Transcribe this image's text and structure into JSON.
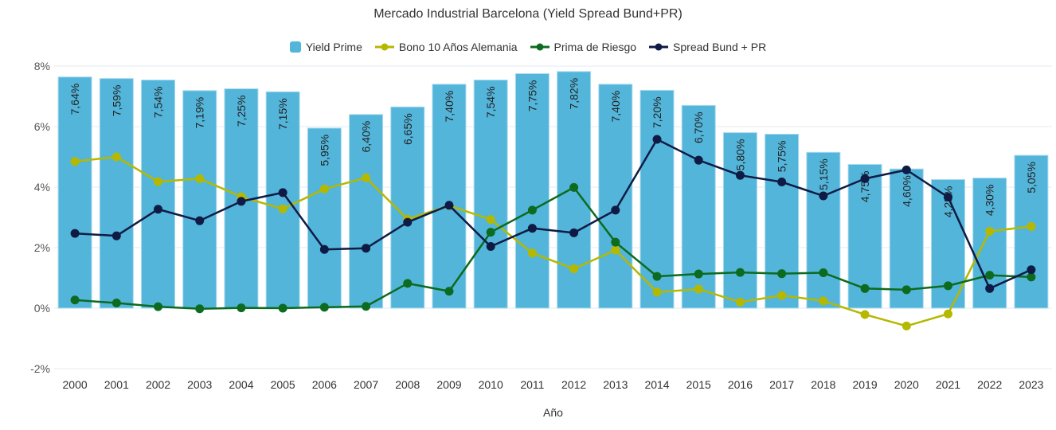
{
  "chart_data": {
    "type": "bar+line",
    "title": "Mercado Industrial Barcelona (Yield Spread Bund+PR)",
    "xlabel": "Año",
    "ylabel": "",
    "ylim": [
      -2,
      8
    ],
    "yticks": [
      -2,
      0,
      2,
      4,
      6,
      8
    ],
    "ytick_labels": [
      "-2%",
      "0%",
      "2%",
      "4%",
      "6%",
      "8%"
    ],
    "grid": true,
    "legend_position": "top-center",
    "categories": [
      "2000",
      "2001",
      "2002",
      "2003",
      "2004",
      "2005",
      "2006",
      "2007",
      "2008",
      "2009",
      "2010",
      "2011",
      "2012",
      "2013",
      "2014",
      "2015",
      "2016",
      "2017",
      "2018",
      "2019",
      "2020",
      "2021",
      "2022",
      "2023"
    ],
    "series": [
      {
        "name": "Yield Prime",
        "kind": "bar",
        "color": "#53b5da",
        "values": [
          7.64,
          7.59,
          7.54,
          7.19,
          7.25,
          7.15,
          5.95,
          6.4,
          6.65,
          7.4,
          7.54,
          7.75,
          7.82,
          7.4,
          7.2,
          6.7,
          5.8,
          5.75,
          5.15,
          4.75,
          4.6,
          4.25,
          4.3,
          5.05
        ],
        "labels": [
          "7,64%",
          "7,59%",
          "7,54%",
          "7,19%",
          "7,25%",
          "7,15%",
          "5,95%",
          "6,40%",
          "6,65%",
          "7,40%",
          "7,54%",
          "7,75%",
          "7,82%",
          "7,40%",
          "7,20%",
          "6,70%",
          "5,80%",
          "5,75%",
          "5,15%",
          "4,75%",
          "4,60%",
          "4,25%",
          "4,30%",
          "5,05%"
        ]
      },
      {
        "name": "Bono 10 Años Alemania",
        "kind": "line",
        "color": "#b5b800",
        "values": [
          4.85,
          5.0,
          4.18,
          4.28,
          3.68,
          3.28,
          3.94,
          4.31,
          2.94,
          3.39,
          2.93,
          1.82,
          1.3,
          1.92,
          0.53,
          0.63,
          0.2,
          0.42,
          0.24,
          -0.21,
          -0.59,
          -0.19,
          2.54,
          2.7
        ]
      },
      {
        "name": "Prima de Riesgo",
        "kind": "line",
        "color": "#0c6b1f",
        "values": [
          0.27,
          0.17,
          0.05,
          -0.02,
          0.01,
          0.0,
          0.03,
          0.06,
          0.82,
          0.56,
          2.51,
          3.24,
          3.99,
          2.18,
          1.05,
          1.13,
          1.18,
          1.14,
          1.17,
          0.65,
          0.61,
          0.74,
          1.09,
          1.03
        ]
      },
      {
        "name": "Spread Bund + PR",
        "kind": "line",
        "color": "#0f1b45",
        "values": [
          2.47,
          2.39,
          3.27,
          2.89,
          3.53,
          3.82,
          1.94,
          1.98,
          2.84,
          3.4,
          2.04,
          2.64,
          2.49,
          3.24,
          5.58,
          4.89,
          4.39,
          4.17,
          3.71,
          4.28,
          4.57,
          3.67,
          0.65,
          1.27
        ]
      }
    ]
  },
  "colors": {
    "gridline": "#e6ebf2",
    "tick_text": "#555555"
  }
}
